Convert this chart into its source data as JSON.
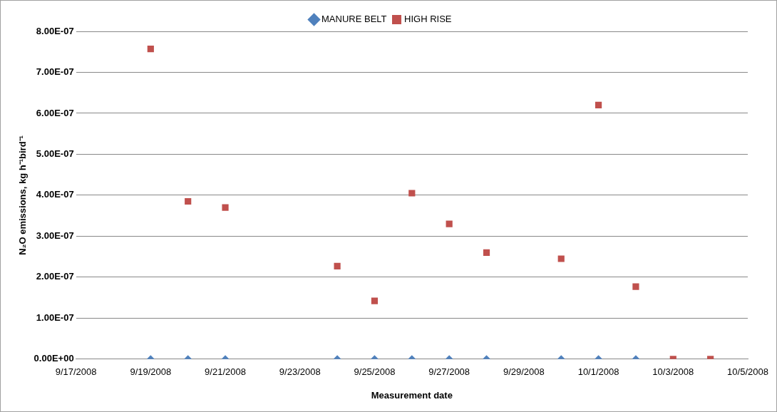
{
  "chart_data": {
    "type": "scatter",
    "xlabel": "Measurement date",
    "ylabel": "N₂O emissions, kg h⁻¹bird⁻¹",
    "legend": "top",
    "grid": "y",
    "series": [
      {
        "name": "MANURE BELT",
        "color": "#4f81bd",
        "marker": "diamond",
        "x": [
          "2008-09-19",
          "2008-09-20",
          "2008-09-21",
          "2008-09-24",
          "2008-09-25",
          "2008-09-26",
          "2008-09-27",
          "2008-09-28",
          "2008-09-30",
          "2008-10-01",
          "2008-10-02"
        ],
        "values": [
          0,
          0,
          0,
          0,
          0,
          0,
          0,
          0,
          0,
          0,
          0
        ]
      },
      {
        "name": "HIGH RISE",
        "color": "#c0504d",
        "marker": "square",
        "x": [
          "2008-09-19",
          "2008-09-20",
          "2008-09-21",
          "2008-09-24",
          "2008-09-25",
          "2008-09-26",
          "2008-09-27",
          "2008-09-28",
          "2008-09-30",
          "2008-10-01",
          "2008-10-02",
          "2008-10-03",
          "2008-10-04"
        ],
        "values": [
          7.57e-07,
          3.85e-07,
          3.7e-07,
          2.27e-07,
          1.42e-07,
          4.05e-07,
          3.3e-07,
          2.6e-07,
          2.45e-07,
          6.2e-07,
          1.77e-07,
          0,
          0
        ]
      }
    ],
    "xlim": [
      "2008-09-17",
      "2008-10-05"
    ],
    "xticks": [
      {
        "value": "2008-09-17",
        "label": "9/17/2008"
      },
      {
        "value": "2008-09-19",
        "label": "9/19/2008"
      },
      {
        "value": "2008-09-21",
        "label": "9/21/2008"
      },
      {
        "value": "2008-09-23",
        "label": "9/23/2008"
      },
      {
        "value": "2008-09-25",
        "label": "9/25/2008"
      },
      {
        "value": "2008-09-27",
        "label": "9/27/2008"
      },
      {
        "value": "2008-09-29",
        "label": "9/29/2008"
      },
      {
        "value": "2008-10-01",
        "label": "10/1/2008"
      },
      {
        "value": "2008-10-03",
        "label": "10/3/2008"
      },
      {
        "value": "2008-10-05",
        "label": "10/5/2008"
      }
    ],
    "ylim": [
      0,
      8e-07
    ],
    "yticks": [
      {
        "value": 0,
        "label": "0.00E+00"
      },
      {
        "value": 1e-07,
        "label": "1.00E-07"
      },
      {
        "value": 2e-07,
        "label": "2.00E-07"
      },
      {
        "value": 3e-07,
        "label": "3.00E-07"
      },
      {
        "value": 4e-07,
        "label": "4.00E-07"
      },
      {
        "value": 5e-07,
        "label": "5.00E-07"
      },
      {
        "value": 6e-07,
        "label": "6.00E-07"
      },
      {
        "value": 7e-07,
        "label": "7.00E-07"
      },
      {
        "value": 8e-07,
        "label": "8.00E-07"
      }
    ]
  }
}
